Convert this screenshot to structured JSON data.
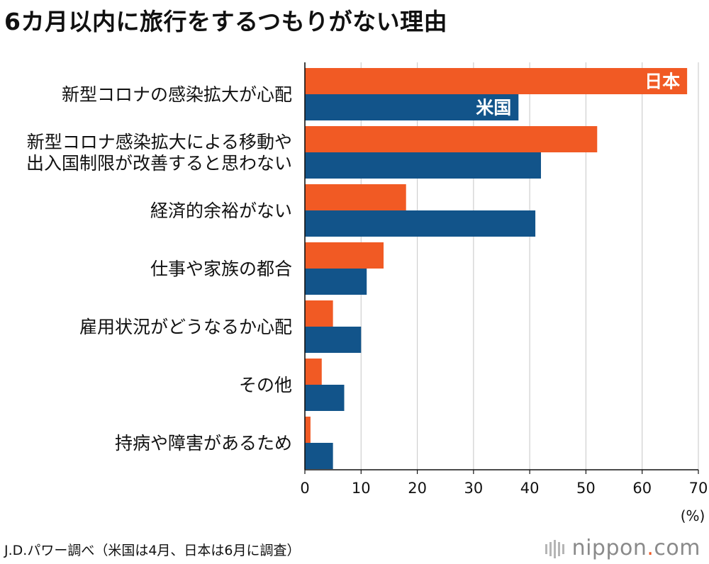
{
  "chart_data": {
    "type": "bar",
    "orientation": "horizontal",
    "title": "6カ月以内に旅行をするつもりがない理由",
    "categories": [
      [
        "新型コロナの感染拡大が心配"
      ],
      [
        "新型コロナ感染拡大による移動や",
        "出入国制限が改善すると思わない"
      ],
      [
        "経済的余裕がない"
      ],
      [
        "仕事や家族の都合"
      ],
      [
        "雇用状況がどうなるか心配"
      ],
      [
        "その他"
      ],
      [
        "持病や障害があるため"
      ]
    ],
    "series": [
      {
        "name": "日本",
        "color": "#f15a24",
        "values": [
          68,
          52,
          18,
          14,
          5,
          3,
          1
        ]
      },
      {
        "name": "米国",
        "color": "#12548a",
        "values": [
          38,
          42,
          41,
          11,
          10,
          7,
          5
        ]
      }
    ],
    "xlim": [
      0,
      70
    ],
    "xticks": [
      "0",
      "10",
      "20",
      "30",
      "40",
      "50",
      "60",
      "70"
    ],
    "unit_label": "(%)",
    "grid": true,
    "legend": "inline labels on first category bars"
  },
  "source": "J.D.パワー調べ（米国は4月、日本は6月に調査）",
  "brand": {
    "name": "nippon",
    "dot": ".",
    "suffix": "com"
  }
}
